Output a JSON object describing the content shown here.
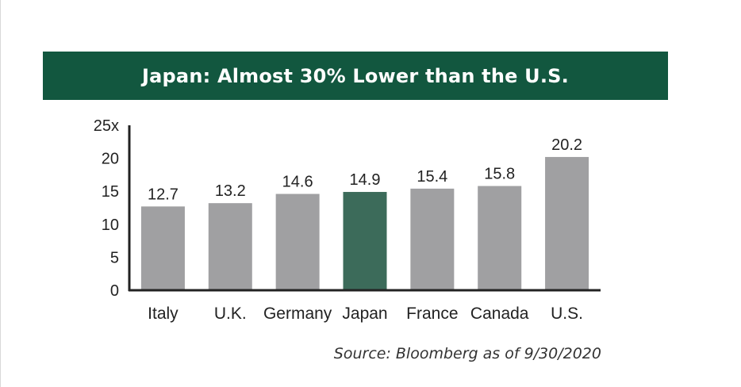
{
  "colors": {
    "title_background": "#12573f",
    "bar_default": "#a0a0a2",
    "bar_highlight": "#3c6b5a",
    "axis": "#222222"
  },
  "chart_data": {
    "type": "bar",
    "title": "Japan: Almost 30% Lower than the U.S.",
    "xlabel": "",
    "ylabel": "",
    "ylim": [
      0,
      25
    ],
    "y_ticks": [
      "0",
      "5",
      "10",
      "15",
      "20",
      "25x"
    ],
    "y_tick_values": [
      0,
      5,
      10,
      15,
      20,
      25
    ],
    "categories": [
      "Italy",
      "U.K.",
      "Germany",
      "Japan",
      "France",
      "Canada",
      "U.S."
    ],
    "values": [
      12.7,
      13.2,
      14.6,
      14.9,
      15.4,
      15.8,
      20.2
    ],
    "value_labels": [
      "12.7",
      "13.2",
      "14.6",
      "14.9",
      "15.4",
      "15.8",
      "20.2"
    ],
    "highlight_category": "Japan",
    "grid": false,
    "legend": "none"
  },
  "footer": {
    "source": "Source: Bloomberg as of 9/30/2020"
  }
}
